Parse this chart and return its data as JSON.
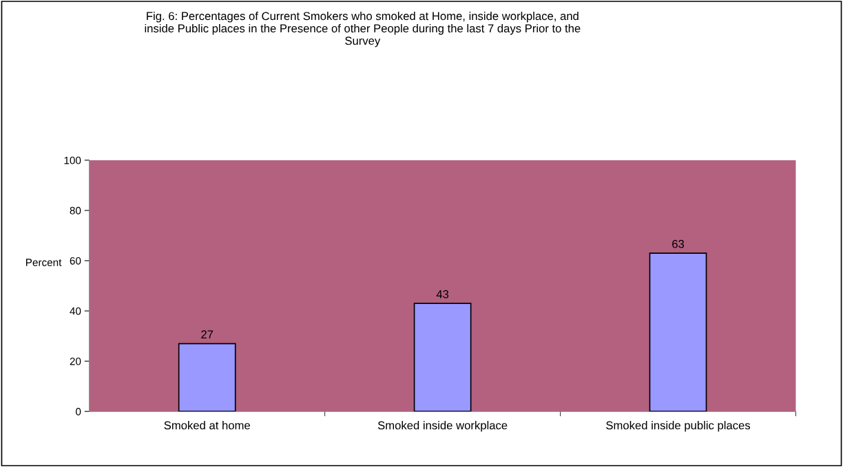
{
  "chart_data": {
    "type": "bar",
    "title": "Fig. 6: Percentages of Current Smokers who smoked at Home, inside workplace, and\ninside Public places in the Presence of other People during the last 7 days Prior to the\nSurvey",
    "ylabel": "Percent",
    "categories": [
      "Smoked at home",
      "Smoked inside workplace",
      "Smoked inside public places"
    ],
    "values": [
      27,
      43,
      63
    ],
    "color": "#9999ff",
    "data_labels": true,
    "ylim": [
      0,
      100
    ],
    "yticks": [
      0,
      20,
      40,
      60,
      80,
      100
    ],
    "grid": false,
    "legend": false
  }
}
